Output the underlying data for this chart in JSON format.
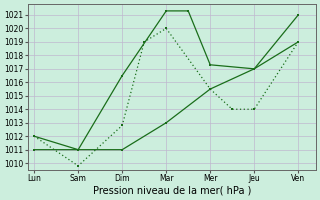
{
  "x_labels": [
    "Lun",
    "Sam",
    "Dim",
    "Mar",
    "Mer",
    "Jeu",
    "Ven"
  ],
  "x_positions": [
    0,
    1,
    2,
    3,
    4,
    5,
    6
  ],
  "line1_x": [
    0,
    1,
    2,
    3,
    3.5,
    4,
    5,
    6
  ],
  "line1_y": [
    1012.0,
    1011.0,
    1016.5,
    1021.3,
    1021.3,
    1017.3,
    1017.0,
    1021.0
  ],
  "line2_x": [
    0,
    1,
    2,
    2.5,
    3,
    4,
    4.5,
    5,
    6
  ],
  "line2_y": [
    1012.0,
    1009.8,
    1012.8,
    1019.0,
    1020.0,
    1015.5,
    1014.0,
    1014.0,
    1019.0
  ],
  "line3_x": [
    0,
    1,
    2,
    3,
    4,
    5,
    6
  ],
  "line3_y": [
    1011.0,
    1011.0,
    1011.0,
    1013.0,
    1015.5,
    1017.0,
    1019.0
  ],
  "ylim": [
    1009.5,
    1021.8
  ],
  "yticks": [
    1010,
    1011,
    1012,
    1013,
    1014,
    1015,
    1016,
    1017,
    1018,
    1019,
    1020,
    1021
  ],
  "line_color": "#1a6e1a",
  "bg_color": "#cceedd",
  "grid_color": "#c0b8d0",
  "xlabel": "Pression niveau de la mer( hPa )"
}
